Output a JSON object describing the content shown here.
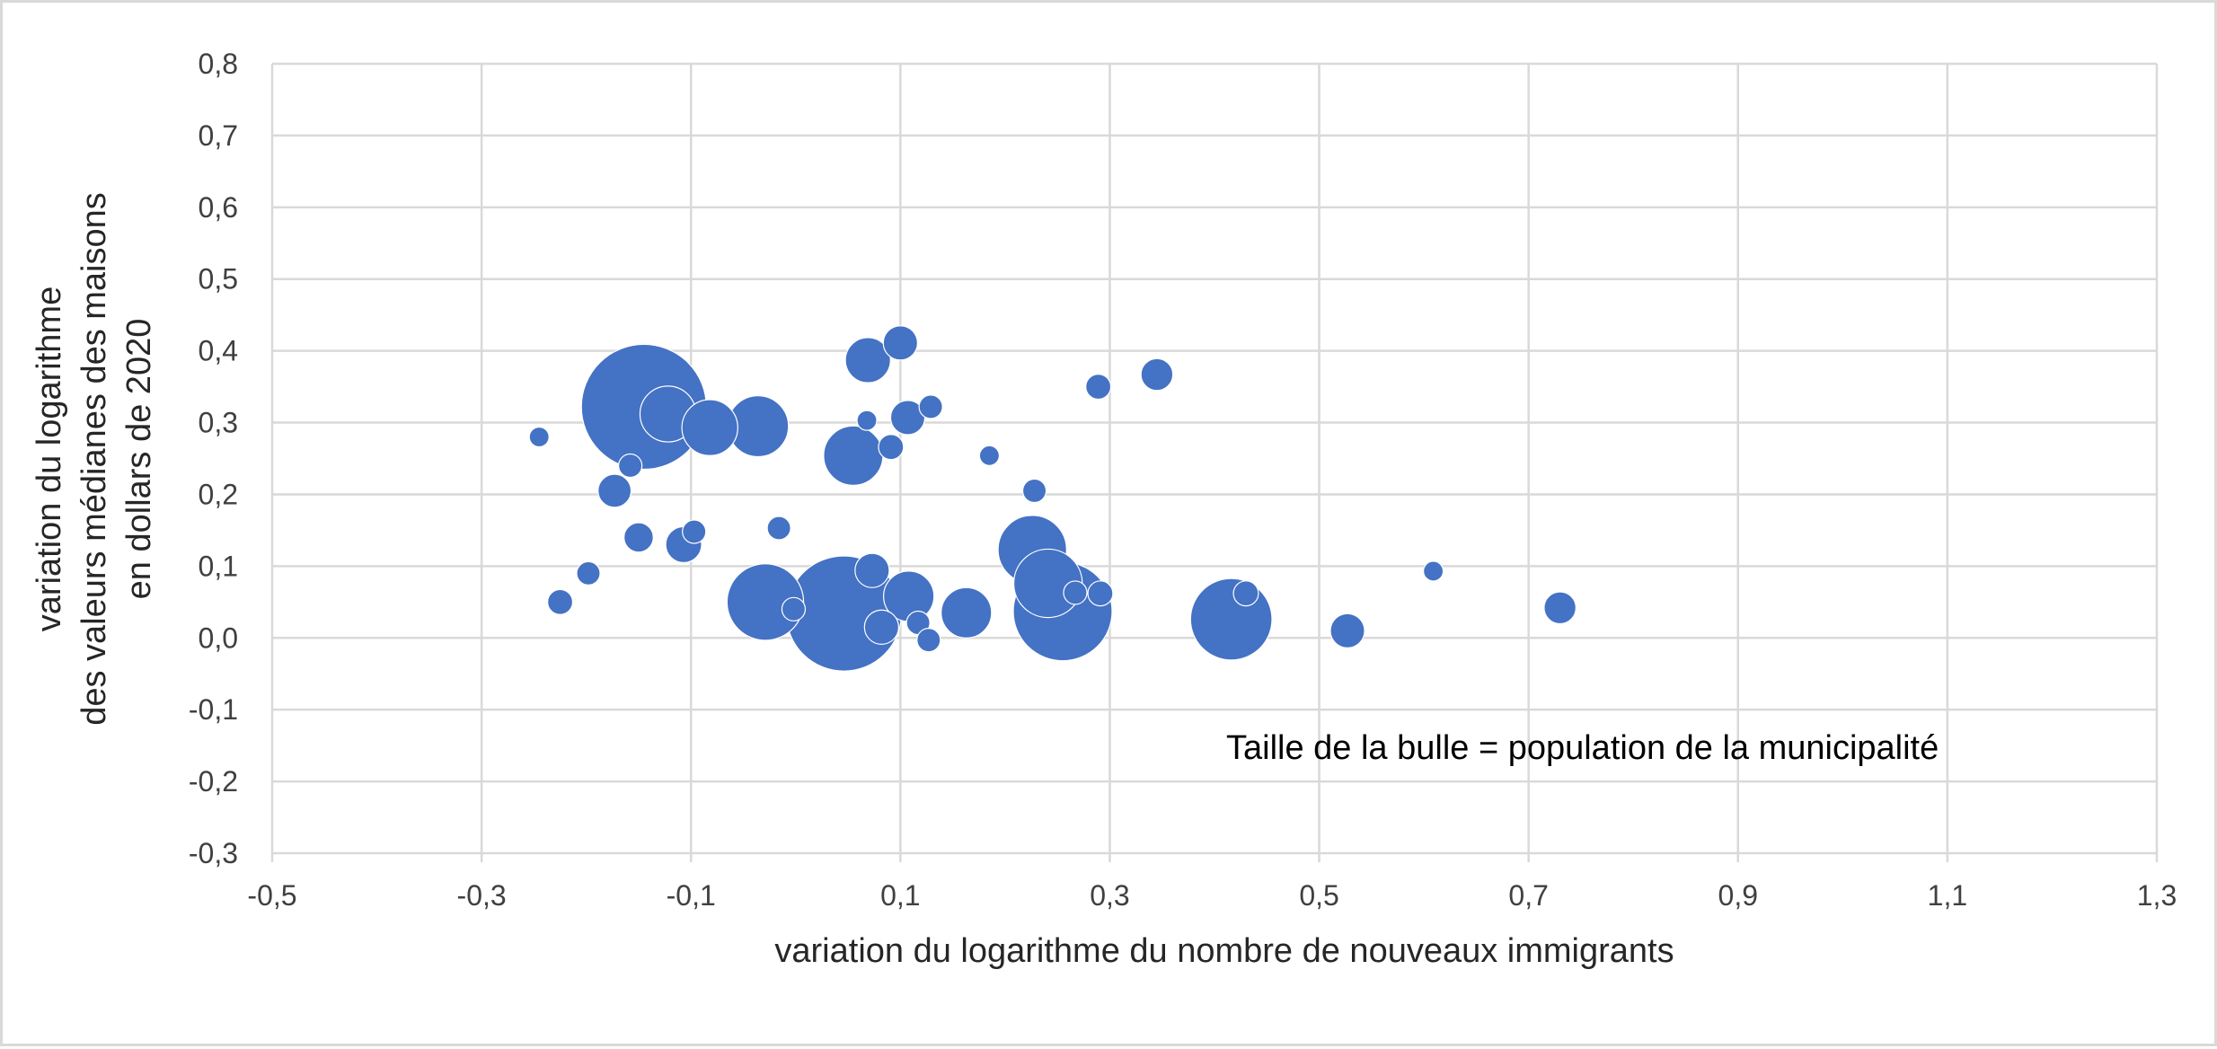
{
  "chart_data": {
    "type": "bubble",
    "title": "",
    "xlabel": "variation du logarithme du nombre de nouveaux immigrants",
    "ylabel_lines": [
      "variation du logarithme",
      "des valeurs médianes des maisons",
      "en dollars de 2020"
    ],
    "annotation": "Taille de la bulle = population de la municipalité",
    "xlim": [
      -0.5,
      1.3
    ],
    "ylim": [
      -0.3,
      0.8
    ],
    "x_ticks": [
      -0.5,
      -0.3,
      -0.1,
      0.1,
      0.3,
      0.5,
      0.7,
      0.9,
      1.1,
      1.3
    ],
    "x_tick_labels": [
      "-0,5",
      "-0,3",
      "-0,1",
      "0,1",
      "0,3",
      "0,5",
      "0,7",
      "0,9",
      "1,1",
      "1,3"
    ],
    "y_ticks": [
      -0.3,
      -0.2,
      -0.1,
      0.0,
      0.1,
      0.2,
      0.3,
      0.4,
      0.5,
      0.6,
      0.7,
      0.8
    ],
    "y_tick_labels": [
      "-0,3",
      "-0,2",
      "-0,1",
      "0,0",
      "0,1",
      "0,2",
      "0,3",
      "0,4",
      "0,5",
      "0,6",
      "0,7",
      "0,8"
    ],
    "grid": true,
    "color": "#4472C4",
    "points": [
      {
        "x": -0.245,
        "y": 0.28,
        "size": 1
      },
      {
        "x": -0.225,
        "y": 0.05,
        "size": 1.6
      },
      {
        "x": -0.198,
        "y": 0.09,
        "size": 1.4
      },
      {
        "x": -0.173,
        "y": 0.205,
        "size": 2.8
      },
      {
        "x": -0.158,
        "y": 0.24,
        "size": 1.4
      },
      {
        "x": -0.15,
        "y": 0.14,
        "size": 2.2
      },
      {
        "x": -0.122,
        "y": 0.312,
        "size": 8
      },
      {
        "x": -0.145,
        "y": 0.322,
        "size": 40
      },
      {
        "x": -0.107,
        "y": 0.13,
        "size": 3.3
      },
      {
        "x": -0.097,
        "y": 0.148,
        "size": 1.4
      },
      {
        "x": -0.082,
        "y": 0.293,
        "size": 8
      },
      {
        "x": -0.036,
        "y": 0.295,
        "size": 9.5
      },
      {
        "x": -0.029,
        "y": 0.05,
        "size": 15
      },
      {
        "x": -0.016,
        "y": 0.153,
        "size": 1.4
      },
      {
        "x": -0.002,
        "y": 0.04,
        "size": 1.4
      },
      {
        "x": 0.046,
        "y": 0.034,
        "size": 34
      },
      {
        "x": 0.055,
        "y": 0.254,
        "size": 9
      },
      {
        "x": 0.068,
        "y": 0.303,
        "size": 1
      },
      {
        "x": 0.069,
        "y": 0.387,
        "size": 5.2
      },
      {
        "x": 0.073,
        "y": 0.094,
        "size": 3
      },
      {
        "x": 0.082,
        "y": 0.015,
        "size": 3
      },
      {
        "x": 0.091,
        "y": 0.266,
        "size": 1.6
      },
      {
        "x": 0.1,
        "y": 0.411,
        "size": 3
      },
      {
        "x": 0.107,
        "y": 0.307,
        "size": 3
      },
      {
        "x": 0.108,
        "y": 0.058,
        "size": 6.5
      },
      {
        "x": 0.117,
        "y": 0.021,
        "size": 1.4
      },
      {
        "x": 0.127,
        "y": -0.003,
        "size": 1.4
      },
      {
        "x": 0.129,
        "y": 0.322,
        "size": 1.4
      },
      {
        "x": 0.163,
        "y": 0.035,
        "size": 6.5
      },
      {
        "x": 0.185,
        "y": 0.254,
        "size": 1
      },
      {
        "x": 0.228,
        "y": 0.205,
        "size": 1.4
      },
      {
        "x": 0.226,
        "y": 0.123,
        "size": 12
      },
      {
        "x": 0.241,
        "y": 0.076,
        "size": 12
      },
      {
        "x": 0.255,
        "y": 0.037,
        "size": 25
      },
      {
        "x": 0.267,
        "y": 0.063,
        "size": 1.4
      },
      {
        "x": 0.291,
        "y": 0.062,
        "size": 1.6
      },
      {
        "x": 0.289,
        "y": 0.35,
        "size": 1.6
      },
      {
        "x": 0.345,
        "y": 0.367,
        "size": 2.6
      },
      {
        "x": 0.416,
        "y": 0.026,
        "size": 17
      },
      {
        "x": 0.43,
        "y": 0.062,
        "size": 1.6
      },
      {
        "x": 0.527,
        "y": 0.01,
        "size": 3
      },
      {
        "x": 0.609,
        "y": 0.093,
        "size": 1
      },
      {
        "x": 0.73,
        "y": 0.042,
        "size": 2.6
      }
    ]
  }
}
